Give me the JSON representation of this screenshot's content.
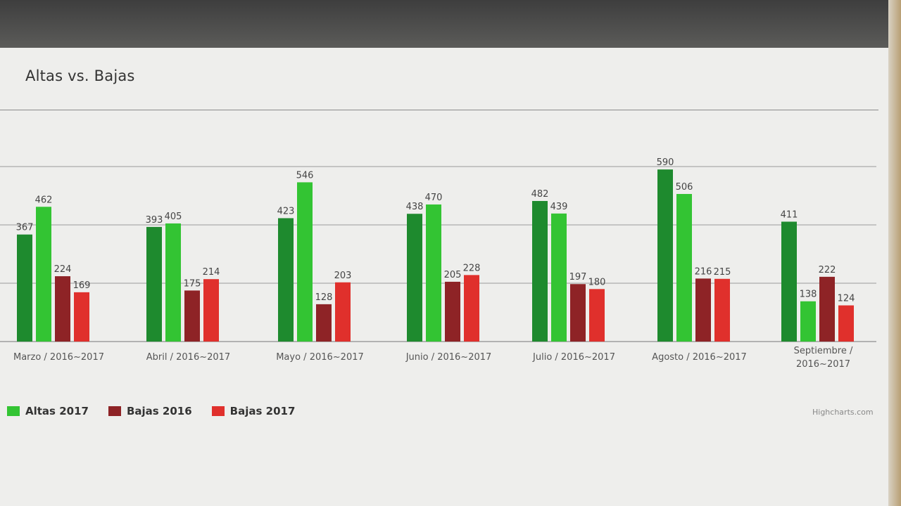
{
  "chart_data": {
    "type": "bar",
    "title": "Altas vs. Bajas",
    "categories": [
      "Marzo / 2016~2017",
      "Abril / 2016~2017",
      "Mayo / 2016~2017",
      "Junio / 2016~2017",
      "Julio / 2016~2017",
      "Agosto / 2016~2017",
      "Septiembre / 2016~2017"
    ],
    "series": [
      {
        "name": "",
        "color": "#1e8a2e",
        "values": [
          367,
          393,
          423,
          438,
          482,
          590,
          411
        ]
      },
      {
        "name": "Altas 2017",
        "color": "#33c433",
        "values": [
          462,
          405,
          546,
          470,
          439,
          506,
          138
        ]
      },
      {
        "name": "Bajas 2016",
        "color": "#8e2326",
        "values": [
          224,
          175,
          128,
          205,
          197,
          216,
          222
        ]
      },
      {
        "name": "Bajas 2017",
        "color": "#e0302c",
        "values": [
          169,
          214,
          203,
          228,
          180,
          215,
          124
        ]
      }
    ],
    "ylim": [
      0,
      600
    ],
    "grid": true,
    "legend_position": "bottom-left",
    "credits": "Highcharts.com"
  }
}
